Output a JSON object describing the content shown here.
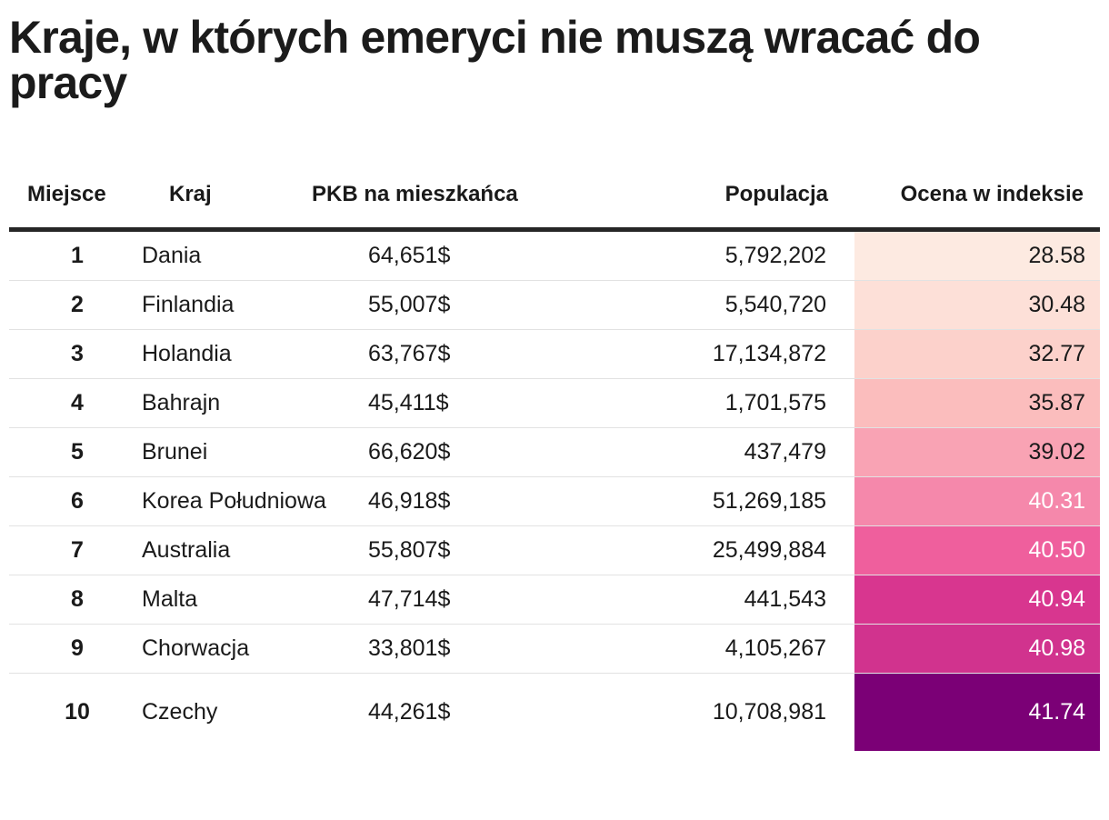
{
  "title": "Kraje, w których emeryci nie muszą wracać do pracy",
  "chart_data": {
    "type": "table",
    "columns": [
      "Miejsce",
      "Kraj",
      "PKB na mieszkańca",
      "Populacja",
      "Ocena w indeksie"
    ],
    "rows": [
      {
        "rank": "1",
        "country": "Dania",
        "gdp": "64,651$",
        "population": "5,792,202",
        "score": "28.58",
        "score_value": 28.58,
        "score_bg": "#fdeae1",
        "score_fg": "#1a1a1a"
      },
      {
        "rank": "2",
        "country": "Finlandia",
        "gdp": "55,007$",
        "population": "5,540,720",
        "score": "30.48",
        "score_value": 30.48,
        "score_bg": "#fde0d8",
        "score_fg": "#1a1a1a"
      },
      {
        "rank": "3",
        "country": "Holandia",
        "gdp": "63,767$",
        "population": "17,134,872",
        "score": "32.77",
        "score_value": 32.77,
        "score_bg": "#fcd1cb",
        "score_fg": "#1a1a1a"
      },
      {
        "rank": "4",
        "country": "Bahrajn",
        "gdp": "45,411$",
        "population": "1,701,575",
        "score": "35.87",
        "score_value": 35.87,
        "score_bg": "#fbbdbd",
        "score_fg": "#1a1a1a"
      },
      {
        "rank": "5",
        "country": "Brunei",
        "gdp": "66,620$",
        "population": "437,479",
        "score": "39.02",
        "score_value": 39.02,
        "score_bg": "#f9a3b4",
        "score_fg": "#1a1a1a"
      },
      {
        "rank": "6",
        "country": "Korea Południowa",
        "gdp": "46,918$",
        "population": "51,269,185",
        "score": "40.31",
        "score_value": 40.31,
        "score_bg": "#f588ab",
        "score_fg": "#ffffff"
      },
      {
        "rank": "7",
        "country": "Australia",
        "gdp": "55,807$",
        "population": "25,499,884",
        "score": "40.50",
        "score_value": 40.5,
        "score_bg": "#ef5f9d",
        "score_fg": "#ffffff"
      },
      {
        "rank": "8",
        "country": "Malta",
        "gdp": "47,714$",
        "population": "441,543",
        "score": "40.94",
        "score_value": 40.94,
        "score_bg": "#d8368f",
        "score_fg": "#ffffff"
      },
      {
        "rank": "9",
        "country": "Chorwacja",
        "gdp": "33,801$",
        "population": "4,105,267",
        "score": "40.98",
        "score_value": 40.98,
        "score_bg": "#d1338e",
        "score_fg": "#ffffff"
      },
      {
        "rank": "10",
        "country": "Czechy",
        "gdp": "44,261$",
        "population": "10,708,981",
        "score": "41.74",
        "score_value": 41.74,
        "score_bg": "#7b0076",
        "score_fg": "#ffffff"
      }
    ]
  }
}
